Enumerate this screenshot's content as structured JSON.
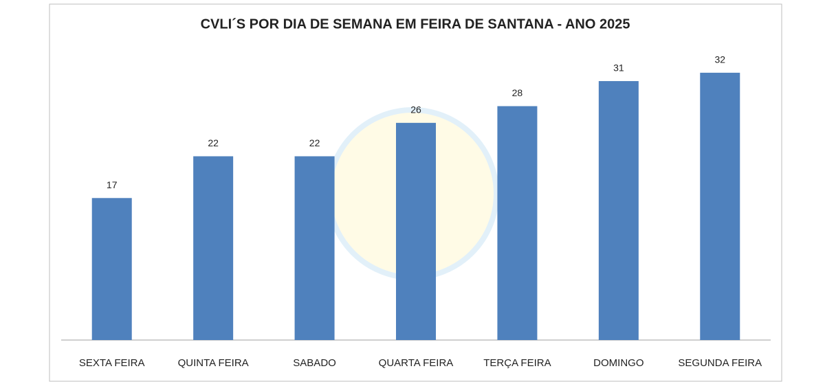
{
  "chart_data": {
    "type": "bar",
    "title": "CVLI´S POR DIA DE SEMANA EM FEIRA DE SANTANA - ANO 2025",
    "categories": [
      "SEXTA FEIRA",
      "QUINTA FEIRA",
      "SABADO",
      "QUARTA FEIRA",
      "TERÇA FEIRA",
      "DOMINGO",
      "SEGUNDA FEIRA"
    ],
    "values": [
      17,
      22,
      22,
      26,
      28,
      31,
      32
    ],
    "color": "#4f81bd",
    "ylim": [
      0,
      40
    ]
  }
}
